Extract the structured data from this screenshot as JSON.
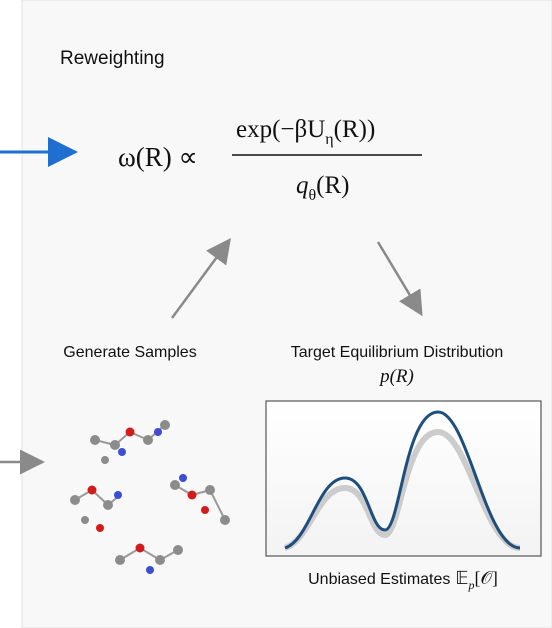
{
  "header": {
    "title": "Reweighting"
  },
  "formula": {
    "lhs": "ω(R) ∝",
    "numerator": {
      "head": "exp(−βU",
      "sub": "η",
      "tail": "(R))"
    },
    "denominator": {
      "head": "q",
      "sub": "θ",
      "tail": "(R)"
    }
  },
  "labels": {
    "generate": "Generate Samples",
    "target": "Target Equilibrium Distribution",
    "target_formula": "p(R)"
  },
  "plot": {
    "caption": "Unbiased Estimates",
    "caption_math": {
      "head": "𝔼",
      "sub": "p",
      "tail": "[𝒪]"
    }
  }
}
